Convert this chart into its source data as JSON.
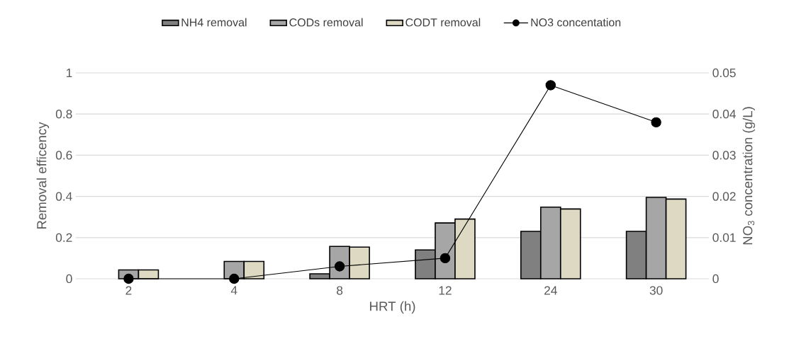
{
  "chart_data": {
    "type": "bar",
    "categories": [
      "2",
      "4",
      "8",
      "12",
      "24",
      "30"
    ],
    "series": [
      {
        "name": "NH4 removal",
        "color": "#808080",
        "values": [
          null,
          null,
          0.024,
          0.14,
          0.23,
          0.23
        ]
      },
      {
        "name": "CODs removal",
        "color": "#a6a6a6",
        "values": [
          0.043,
          0.084,
          0.157,
          0.271,
          0.348,
          0.395
        ]
      },
      {
        "name": "CODT removal",
        "color": "#ddd9c3",
        "values": [
          0.043,
          0.084,
          0.154,
          0.29,
          0.339,
          0.387
        ]
      },
      {
        "name": "NO3 concentation",
        "color": "#000000",
        "type": "line",
        "axis": "y2",
        "marker": "circle",
        "values": [
          0,
          0,
          0.003,
          0.005,
          0.047,
          0.038
        ]
      }
    ],
    "xlabel": "HRT (h)",
    "ylabel": "Removal efficency",
    "y2label": "NO$_{3}$ concentration (g/L)",
    "ylim": [
      0,
      1
    ],
    "yticks": [
      0,
      0.2,
      0.4,
      0.6,
      0.8,
      1
    ],
    "y2lim": [
      0,
      0.05
    ],
    "y2ticks": [
      0,
      0.01,
      0.02,
      0.03,
      0.04,
      0.05
    ],
    "grid": "y",
    "legend": "top"
  }
}
